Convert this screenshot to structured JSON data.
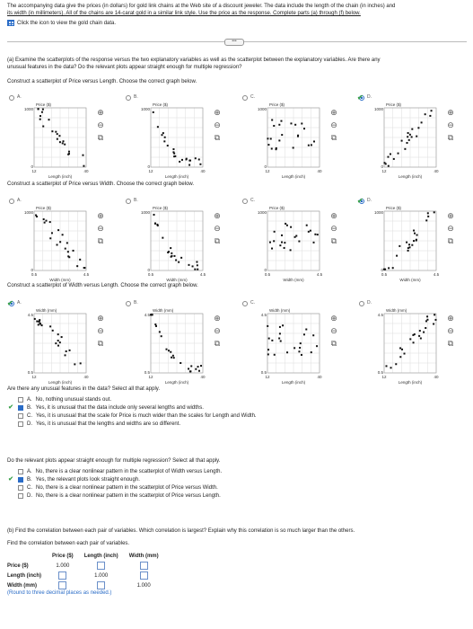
{
  "intro": {
    "line1": "The accompanying data give the prices (in dollars) for gold link chains at the Web site of a discount jeweler. The data include the length of the chain (in inches) and",
    "line2": "its width (in millimeters). All of the chains are 14-carat gold in a similar link style. Use the price as the response. Complete parts (a) through (f) below."
  },
  "data_link": "Click the icon to view the gold chain data.",
  "part_a": {
    "question1": "(a) Examine the scatterplots of the response versus the two explanatory variables as well as the scatterplot between the explanatory variables. Are there any",
    "question2": "unusual features in the data? Do the relevant plots appear straight enough for multiple regression?",
    "prompt1": "Construct a scatterplot of Price versus Length. Choose the correct graph below.",
    "prompt2": "Construct a scatterplot of Price versus Width. Choose the correct graph below.",
    "prompt3": "Construct a scatterplot of Width versus Length. Choose the correct graph below."
  },
  "option_letters": [
    "A.",
    "B.",
    "C.",
    "D."
  ],
  "axis": {
    "price_y": "Price ($)",
    "width_y": "Width (mm)",
    "length_x": "Length (inch)",
    "width_x": "Width (mm)",
    "p_top": "1000",
    "p_bot": "0",
    "w_top": "4.5",
    "w_bot": "0.5",
    "l_min": "12",
    "l_max": "40",
    "w_min": "0.5",
    "w_max": "4.5"
  },
  "unusual": {
    "question": "Are there any unusual features in the data? Select all that apply.",
    "options": [
      {
        "letter": "A.",
        "text": "No, nothing unusual stands out."
      },
      {
        "letter": "B.",
        "text": "Yes, it is unusual that the data include only several lengths and widths."
      },
      {
        "letter": "C.",
        "text": "Yes, it is unusual that the scale for Price is much wider than the scales for Length and Width."
      },
      {
        "letter": "D.",
        "text": "Yes, it is unusual that the lengths and widths are so different."
      }
    ]
  },
  "straight": {
    "question": "Do the relevant plots appear straight enough for multiple regression? Select all that apply.",
    "options": [
      {
        "letter": "A.",
        "text": "No, there is a clear nonlinear pattern in the scatterplot of Width versus Length."
      },
      {
        "letter": "B.",
        "text": "Yes, the relevant plots look straight enough."
      },
      {
        "letter": "C.",
        "text": "No, there is a clear nonlinear pattern in the scatterplot of Price versus Width."
      },
      {
        "letter": "D.",
        "text": "No, there is a clear nonlinear pattern in the scatterplot of Price versus Length."
      }
    ]
  },
  "part_b": {
    "question": "(b) Find the correlation between each pair of variables. Which correlation is largest? Explain why this correlation is so much larger than the others.",
    "prompt": "Find the correlation between each pair of variables.",
    "headers": [
      "",
      "Price ($)",
      "Length (inch)",
      "Width (mm)"
    ],
    "rows": [
      "Price ($)",
      "Length (inch)",
      "Width (mm)"
    ],
    "diag": "1.000",
    "note": "(Round to three decimal places as needed.)"
  }
}
